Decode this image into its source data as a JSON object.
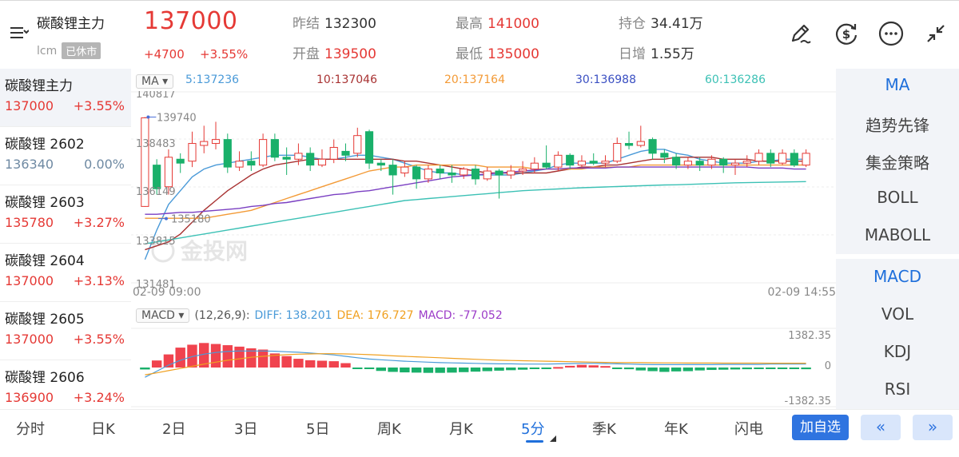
{
  "header": {
    "name": "碳酸锂主力",
    "exchange": "lcm",
    "status": "已休市",
    "price": "137000",
    "change": "+4700",
    "change_pct": "+3.55%",
    "stats": {
      "prev_close_label": "昨结",
      "prev_close": "132300",
      "open_label": "开盘",
      "open": "139500",
      "high_label": "最高",
      "high": "141000",
      "low_label": "最低",
      "low": "135000",
      "oi_label": "持仓",
      "oi": "34.41万",
      "oi_change_label": "日增",
      "oi_change": "1.55万"
    },
    "icons": [
      "pen-icon",
      "dollar-refresh-icon",
      "more-icon",
      "collapse-icon"
    ]
  },
  "list": [
    {
      "name": "碳酸锂主力",
      "price": "137000",
      "pct": "+3.55%",
      "trend": "up"
    },
    {
      "name": "碳酸锂 2602",
      "price": "136340",
      "pct": "0.00%",
      "trend": "flat"
    },
    {
      "name": "碳酸锂 2603",
      "price": "135780",
      "pct": "+3.27%",
      "trend": "up"
    },
    {
      "name": "碳酸锂 2604",
      "price": "137000",
      "pct": "+3.13%",
      "trend": "up"
    },
    {
      "name": "碳酸锂 2605",
      "price": "137000",
      "pct": "+3.55%",
      "trend": "up"
    },
    {
      "name": "碳酸锂 2606",
      "price": "136900",
      "pct": "+3.24%",
      "trend": "up"
    }
  ],
  "ma_legend": {
    "chip": "MA",
    "ma5": "5:137236",
    "ma10": "10:137046",
    "ma20": "20:137164",
    "ma30": "30:136988",
    "ma60": "60:136286"
  },
  "macd_legend": {
    "chip": "MACD",
    "params": "(12,26,9):",
    "diff": "DIFF: 138.201",
    "dea": "DEA: 176.727",
    "macd": "MACD: -77.052"
  },
  "chart_data": [
    {
      "type": "candlestick",
      "y_axis_labels": [
        "140817",
        "138483",
        "136149",
        "133815",
        "131481"
      ],
      "ylim": [
        131481,
        140817
      ],
      "annotations": {
        "high": "139740",
        "low": "135180"
      },
      "x_start": "02-09 09:00",
      "x_end": "02-09 14:55",
      "watermark": "金投网",
      "colors": {
        "up": "#e53935",
        "down": "#19b06a",
        "ma5": "#4a9ad8",
        "ma10": "#a83232",
        "ma20": "#f39a36",
        "ma30": "#7a3fc2",
        "ma60": "#3cc1b5"
      },
      "candles": [
        {
          "o": 135200,
          "c": 139700,
          "h": 139740,
          "l": 135180
        },
        {
          "o": 137300,
          "c": 136100,
          "h": 137600,
          "l": 135800
        },
        {
          "o": 136200,
          "c": 137700,
          "h": 138100,
          "l": 135800
        },
        {
          "o": 137600,
          "c": 137400,
          "h": 137900,
          "l": 136900
        },
        {
          "o": 137500,
          "c": 138400,
          "h": 139000,
          "l": 137200
        },
        {
          "o": 138300,
          "c": 138500,
          "h": 139300,
          "l": 137900
        },
        {
          "o": 138400,
          "c": 138600,
          "h": 139500,
          "l": 138100
        },
        {
          "o": 138600,
          "c": 137200,
          "h": 138900,
          "l": 136900
        },
        {
          "o": 137200,
          "c": 137500,
          "h": 138000,
          "l": 137000
        },
        {
          "o": 137500,
          "c": 137300,
          "h": 138000,
          "l": 137000
        },
        {
          "o": 137300,
          "c": 138600,
          "h": 138900,
          "l": 137200
        },
        {
          "o": 138600,
          "c": 137700,
          "h": 138900,
          "l": 137500
        },
        {
          "o": 137700,
          "c": 137600,
          "h": 138200,
          "l": 136800
        },
        {
          "o": 137600,
          "c": 137900,
          "h": 138400,
          "l": 137300
        },
        {
          "o": 137900,
          "c": 137300,
          "h": 138200,
          "l": 137000
        },
        {
          "o": 137300,
          "c": 137600,
          "h": 138100,
          "l": 137200
        },
        {
          "o": 137600,
          "c": 138200,
          "h": 138600,
          "l": 137400
        },
        {
          "o": 138000,
          "c": 137800,
          "h": 138400,
          "l": 137500
        },
        {
          "o": 137900,
          "c": 138800,
          "h": 139200,
          "l": 137700
        },
        {
          "o": 139000,
          "c": 137400,
          "h": 139100,
          "l": 137100
        },
        {
          "o": 137400,
          "c": 137300,
          "h": 137600,
          "l": 137000
        },
        {
          "o": 137300,
          "c": 136800,
          "h": 137600,
          "l": 135800
        },
        {
          "o": 136900,
          "c": 137200,
          "h": 137500,
          "l": 136700
        },
        {
          "o": 137200,
          "c": 136600,
          "h": 137300,
          "l": 136100
        },
        {
          "o": 136600,
          "c": 137100,
          "h": 137300,
          "l": 136400
        },
        {
          "o": 137100,
          "c": 136900,
          "h": 137300,
          "l": 136600
        },
        {
          "o": 136900,
          "c": 136800,
          "h": 137300,
          "l": 136400
        },
        {
          "o": 136800,
          "c": 137100,
          "h": 137200,
          "l": 136600
        },
        {
          "o": 137100,
          "c": 136600,
          "h": 137300,
          "l": 136300
        },
        {
          "o": 136600,
          "c": 137000,
          "h": 137200,
          "l": 136500
        },
        {
          "o": 137000,
          "c": 136800,
          "h": 137100,
          "l": 135600
        },
        {
          "o": 136800,
          "c": 137000,
          "h": 137300,
          "l": 136600
        },
        {
          "o": 137000,
          "c": 137100,
          "h": 137500,
          "l": 136800
        },
        {
          "o": 137100,
          "c": 137400,
          "h": 137700,
          "l": 136900
        },
        {
          "o": 137400,
          "c": 137200,
          "h": 138300,
          "l": 137100
        },
        {
          "o": 137200,
          "c": 137800,
          "h": 138000,
          "l": 137000
        },
        {
          "o": 137800,
          "c": 137300,
          "h": 137900,
          "l": 137100
        },
        {
          "o": 137300,
          "c": 137500,
          "h": 137800,
          "l": 137200
        },
        {
          "o": 137500,
          "c": 137400,
          "h": 137900,
          "l": 137300
        },
        {
          "o": 137400,
          "c": 137500,
          "h": 137800,
          "l": 137200
        },
        {
          "o": 137500,
          "c": 138400,
          "h": 138700,
          "l": 137400
        },
        {
          "o": 138400,
          "c": 138300,
          "h": 139000,
          "l": 138100
        },
        {
          "o": 138300,
          "c": 138500,
          "h": 139300,
          "l": 138200
        },
        {
          "o": 138600,
          "c": 137900,
          "h": 138700,
          "l": 137600
        },
        {
          "o": 137900,
          "c": 137700,
          "h": 138100,
          "l": 137400
        },
        {
          "o": 137700,
          "c": 137300,
          "h": 137900,
          "l": 137100
        },
        {
          "o": 137300,
          "c": 137500,
          "h": 137700,
          "l": 137100
        },
        {
          "o": 137500,
          "c": 137300,
          "h": 137700,
          "l": 137000
        },
        {
          "o": 137300,
          "c": 137600,
          "h": 137800,
          "l": 137100
        },
        {
          "o": 137600,
          "c": 137300,
          "h": 137700,
          "l": 136900
        },
        {
          "o": 137300,
          "c": 137400,
          "h": 137600,
          "l": 136800
        },
        {
          "o": 137400,
          "c": 137500,
          "h": 137800,
          "l": 137200
        },
        {
          "o": 137500,
          "c": 137900,
          "h": 138100,
          "l": 137300
        },
        {
          "o": 137900,
          "c": 137400,
          "h": 138100,
          "l": 137200
        },
        {
          "o": 137400,
          "c": 137900,
          "h": 138100,
          "l": 137300
        },
        {
          "o": 137900,
          "c": 137300,
          "h": 138100,
          "l": 137200
        },
        {
          "o": 137300,
          "c": 137900,
          "h": 138100,
          "l": 137200
        }
      ],
      "ma_series": {
        "ma5": [
          132500,
          134000,
          135300,
          136000,
          136700,
          137100,
          137300,
          137400,
          137500,
          137600,
          137700,
          137800,
          137800,
          137800,
          137700,
          137600,
          137600,
          137700,
          137800,
          137800,
          137700,
          137600,
          137400,
          137200,
          137000,
          136900,
          136900,
          136800,
          136800,
          136800,
          136800,
          136800,
          136900,
          137000,
          137100,
          137300,
          137400,
          137400,
          137400,
          137400,
          137600,
          137800,
          138000,
          138100,
          138100,
          137900,
          137800,
          137600,
          137500,
          137400,
          137400,
          137400,
          137500,
          137500,
          137600,
          137600,
          137600
        ],
        "ma10": [
          133000,
          133200,
          133400,
          133800,
          134400,
          135000,
          135500,
          136000,
          136400,
          136800,
          137100,
          137300,
          137400,
          137500,
          137600,
          137600,
          137600,
          137600,
          137600,
          137600,
          137600,
          137600,
          137500,
          137500,
          137400,
          137300,
          137200,
          137100,
          137000,
          136900,
          136900,
          136900,
          136900,
          136900,
          136900,
          137000,
          137100,
          137200,
          137200,
          137300,
          137300,
          137400,
          137500,
          137600,
          137600,
          137700,
          137700,
          137700,
          137700,
          137600,
          137600,
          137600,
          137500,
          137500,
          137500,
          137500,
          137500
        ],
        "ma20": [
          134600,
          134600,
          134600,
          134600,
          134600,
          134600,
          134700,
          134800,
          134900,
          135000,
          135200,
          135400,
          135600,
          135800,
          136000,
          136200,
          136400,
          136600,
          136800,
          137000,
          137100,
          137200,
          137200,
          137300,
          137300,
          137300,
          137300,
          137300,
          137300,
          137200,
          137200,
          137200,
          137200,
          137100,
          137100,
          137100,
          137100,
          137100,
          137200,
          137200,
          137200,
          137200,
          137300,
          137300,
          137300,
          137300,
          137300,
          137300,
          137300,
          137300,
          137300,
          137300,
          137300,
          137300,
          137300,
          137300,
          137300
        ],
        "ma30": [
          134800,
          134800,
          134850,
          134900,
          134900,
          134950,
          135000,
          135050,
          135100,
          135200,
          135250,
          135350,
          135400,
          135500,
          135600,
          135700,
          135800,
          135850,
          135950,
          136000,
          136100,
          136200,
          136300,
          136400,
          136500,
          136600,
          136700,
          136750,
          136800,
          136850,
          136900,
          136950,
          137000,
          137050,
          137100,
          137100,
          137150,
          137150,
          137150,
          137150,
          137200,
          137200,
          137200,
          137200,
          137200,
          137200,
          137200,
          137200,
          137200,
          137200,
          137200,
          137200,
          137150,
          137150,
          137150,
          137100,
          137100
        ],
        "ma60": [
          133300,
          133400,
          133500,
          133600,
          133700,
          133800,
          133900,
          134000,
          134100,
          134200,
          134300,
          134400,
          134500,
          134600,
          134700,
          134800,
          134900,
          135000,
          135100,
          135200,
          135300,
          135400,
          135500,
          135550,
          135600,
          135650,
          135700,
          135750,
          135800,
          135850,
          135900,
          135950,
          136000,
          136030,
          136060,
          136090,
          136120,
          136150,
          136170,
          136190,
          136210,
          136230,
          136250,
          136270,
          136290,
          136300,
          136320,
          136340,
          136360,
          136380,
          136400,
          136410,
          136420,
          136430,
          136440,
          136450,
          136460
        ]
      }
    },
    {
      "type": "bar",
      "title": "MACD",
      "y_axis_labels": [
        "1382.35",
        "0",
        "-1382.35"
      ],
      "ylim": [
        -1382.35,
        1382.35
      ],
      "histogram": [
        -80,
        290,
        540,
        820,
        940,
        1010,
        970,
        920,
        860,
        790,
        740,
        580,
        470,
        360,
        300,
        280,
        260,
        180,
        -30,
        -60,
        -140,
        -180,
        -200,
        -210,
        -220,
        -220,
        -210,
        -190,
        -170,
        -150,
        -130,
        -110,
        -90,
        -60,
        -30,
        20,
        70,
        110,
        90,
        60,
        -30,
        -70,
        -120,
        -150,
        -180,
        -160,
        -150,
        -120,
        -100,
        -90,
        -80,
        -70,
        -60,
        -60,
        -50,
        -60,
        -70
      ],
      "diff": [
        -400,
        -150,
        100,
        300,
        450,
        550,
        620,
        660,
        680,
        680,
        680,
        670,
        650,
        630,
        600,
        560,
        520,
        460,
        400,
        350,
        320,
        290,
        260,
        240,
        220,
        200,
        190,
        180,
        170,
        160,
        150,
        150,
        140,
        140,
        140,
        150,
        160,
        170,
        170,
        160,
        150,
        140,
        130,
        120,
        120,
        120,
        120,
        120,
        120,
        130,
        130,
        130,
        130,
        140,
        140,
        140,
        140
      ],
      "dea": [
        -300,
        -220,
        -130,
        -40,
        50,
        140,
        220,
        300,
        360,
        420,
        460,
        500,
        530,
        550,
        560,
        570,
        570,
        560,
        550,
        530,
        510,
        480,
        460,
        440,
        420,
        400,
        380,
        360,
        340,
        320,
        300,
        290,
        280,
        270,
        260,
        250,
        240,
        230,
        220,
        210,
        200,
        200,
        200,
        195,
        190,
        190,
        185,
        185,
        185,
        180,
        180,
        180,
        180,
        178,
        178,
        177,
        177
      ]
    }
  ],
  "right_panel": {
    "main_items": [
      "MA",
      "趋势先锋",
      "集金策略",
      "BOLL",
      "MABOLL"
    ],
    "sub_items": [
      "MACD",
      "VOL",
      "KDJ",
      "RSI"
    ]
  },
  "periods": [
    "分时",
    "日K",
    "2日",
    "3日",
    "5日",
    "周K",
    "月K",
    "5分",
    "季K",
    "年K",
    "闪电"
  ],
  "active_period": "5分",
  "buttons": {
    "add_fav": "加自选",
    "prev": "«",
    "next": "»"
  }
}
